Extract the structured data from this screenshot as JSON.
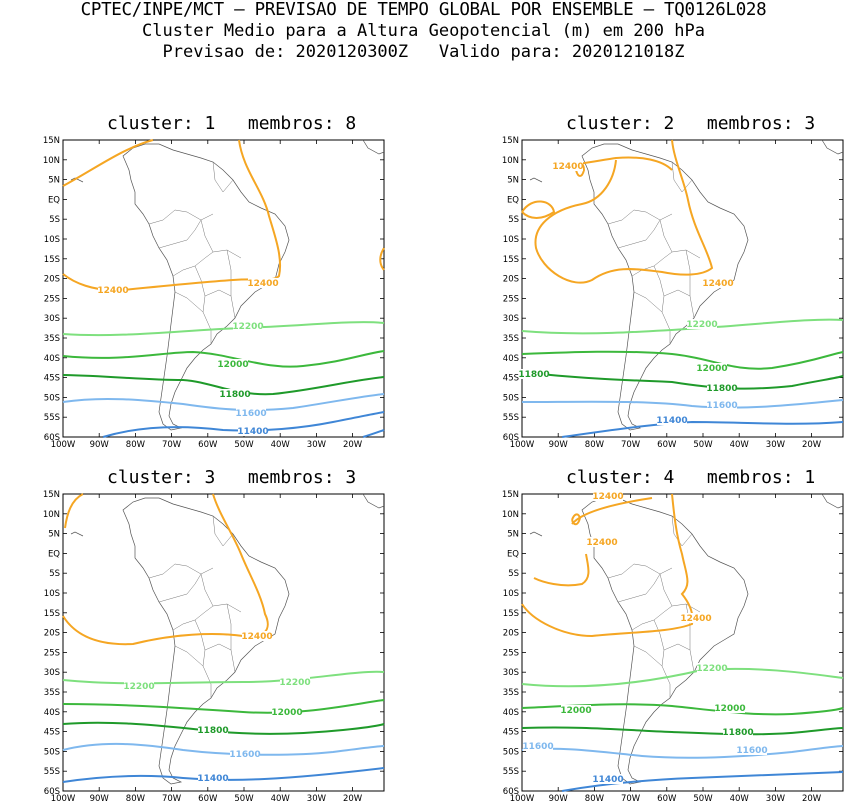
{
  "header": {
    "line1": "CPTEC/INPE/MCT — PREVISAO DE TEMPO GLOBAL POR ENSEMBLE — TQ0126L028",
    "line2": "Cluster Medio para a Altura Geopotencial (m) em 200 hPa",
    "line3": "Previsao de: 2020120300Z   Valido para: 2020121018Z"
  },
  "axis": {
    "lat_labels": [
      "15N",
      "10N",
      "5N",
      "EQ",
      "5S",
      "10S",
      "15S",
      "20S",
      "25S",
      "30S",
      "35S",
      "40S",
      "45S",
      "50S",
      "55S",
      "60S"
    ],
    "lon_labels": [
      "100W",
      "90W",
      "80W",
      "70W",
      "60W",
      "50W",
      "40W",
      "30W",
      "20W"
    ]
  },
  "contour_colors": {
    "12400": "#f5a623",
    "12200": "#7ee07e",
    "12000": "#3cb83c",
    "11800": "#1f9a2a",
    "11600": "#7fb8ee",
    "11400": "#3f86d6"
  },
  "panels": [
    {
      "title": "cluster: 1   membros: 8",
      "labels": [
        {
          "text": "12400",
          "color": "12400"
        },
        {
          "text": "12400",
          "color": "12400"
        },
        {
          "text": "12200",
          "color": "12200"
        },
        {
          "text": "12000",
          "color": "12000"
        },
        {
          "text": "11800",
          "color": "11800"
        },
        {
          "text": "11600",
          "color": "11600"
        },
        {
          "text": "11400",
          "color": "11400"
        }
      ]
    },
    {
      "title": "cluster: 2   membros: 3",
      "labels": [
        {
          "text": "12400",
          "color": "12400"
        },
        {
          "text": "12400",
          "color": "12400"
        },
        {
          "text": "12200",
          "color": "12200"
        },
        {
          "text": "12000",
          "color": "12000"
        },
        {
          "text": "11800",
          "color": "11800"
        },
        {
          "text": "11800",
          "color": "11800"
        },
        {
          "text": "11600",
          "color": "11600"
        },
        {
          "text": "11400",
          "color": "11400"
        }
      ]
    },
    {
      "title": "cluster: 3   membros: 3",
      "labels": [
        {
          "text": "12400",
          "color": "12400"
        },
        {
          "text": "12200",
          "color": "12200"
        },
        {
          "text": "12200",
          "color": "12200"
        },
        {
          "text": "12000",
          "color": "12000"
        },
        {
          "text": "11800",
          "color": "11800"
        },
        {
          "text": "11600",
          "color": "11600"
        },
        {
          "text": "11400",
          "color": "11400"
        }
      ]
    },
    {
      "title": "cluster: 4   membros: 1",
      "labels": [
        {
          "text": "12400",
          "color": "12400"
        },
        {
          "text": "12400",
          "color": "12400"
        },
        {
          "text": "12400",
          "color": "12400"
        },
        {
          "text": "12200",
          "color": "12200"
        },
        {
          "text": "12000",
          "color": "12000"
        },
        {
          "text": "12000",
          "color": "12000"
        },
        {
          "text": "11800",
          "color": "11800"
        },
        {
          "text": "11600",
          "color": "11600"
        },
        {
          "text": "11600",
          "color": "11600"
        },
        {
          "text": "11400",
          "color": "11400"
        }
      ]
    }
  ]
}
